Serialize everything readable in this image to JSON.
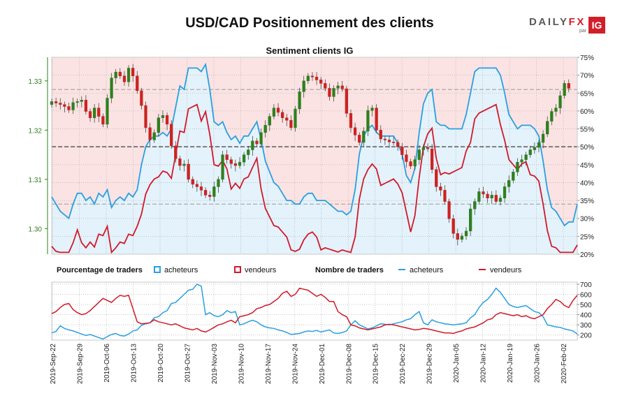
{
  "title": "USD/CAD Positionnement des clients",
  "brand": {
    "name_a": "DAILY",
    "name_b": "FX",
    "sub": "par",
    "badge": "IG"
  },
  "subtitle": "Sentiment clients IG",
  "legend": {
    "pct_title": "Pourcentage de traders",
    "buyers": "acheteurs",
    "sellers": "vendeurs",
    "count_title": "Nombre de traders",
    "buyers2": "acheteurs",
    "sellers2": "vendeurs"
  },
  "colors": {
    "buyers": "#2a9fe0",
    "sellers": "#d01a2a",
    "buyers_fill": "#e4f2fb",
    "sellers_fill": "#fbe3e3",
    "candle_up": "#2f7f1e",
    "candle_down": "#cc2222"
  },
  "chart_data": [
    {
      "type": "candlestick",
      "title": "Sentiment clients IG",
      "x_start": "2019-Sep-22",
      "x_end": "2020-Feb-04",
      "x_tick_labels": [
        "2019-Sep-22",
        "2019-Sep-29",
        "2019-Oct-06",
        "2019-Oct-13",
        "2019-Oct-20",
        "2019-Oct-27",
        "2019-Nov-03",
        "2019-Nov-10",
        "2019-Nov-17",
        "2019-Nov-24",
        "2019-Dec-01",
        "2019-Dec-08",
        "2019-Dec-15",
        "2019-Dec-22",
        "2019-Dec-29",
        "2020-Jan-05",
        "2020-Jan-12",
        "2020-Jan-19",
        "2020-Jan-26",
        "2020-Feb-02"
      ],
      "y_left": {
        "label": "price",
        "ticks": [
          "1.30",
          "1.31",
          "1.32",
          "1.33"
        ],
        "range": [
          1.2948,
          1.3348
        ]
      },
      "y_right": {
        "label": "pourcentage",
        "ticks": [
          "20%",
          "25%",
          "30%",
          "35%",
          "40%",
          "45%",
          "50%",
          "55%",
          "60%",
          "65%",
          "70%",
          "75%"
        ],
        "range": [
          20,
          75
        ]
      },
      "reference_lines_pct": [
        34,
        50,
        66
      ],
      "price_close": [
        1.3258,
        1.3255,
        1.3252,
        1.3248,
        1.3241,
        1.3256,
        1.3258,
        1.3261,
        1.3238,
        1.3225,
        1.3245,
        1.3228,
        1.3212,
        1.3265,
        1.3306,
        1.3318,
        1.331,
        1.3298,
        1.3326,
        1.331,
        1.328,
        1.325,
        1.3205,
        1.318,
        1.3195,
        1.3225,
        1.323,
        1.3212,
        1.3168,
        1.3142,
        1.3128,
        1.3131,
        1.31,
        1.309,
        1.3085,
        1.3078,
        1.3068,
        1.3065,
        1.3085,
        1.31,
        1.315,
        1.314,
        1.3132,
        1.3128,
        1.3135,
        1.315,
        1.316,
        1.3178,
        1.3172,
        1.3195,
        1.321,
        1.3228,
        1.3245,
        1.3236,
        1.3225,
        1.322,
        1.3205,
        1.3243,
        1.3278,
        1.33,
        1.331,
        1.3308,
        1.3302,
        1.3295,
        1.3285,
        1.3268,
        1.3285,
        1.329,
        1.3284,
        1.3234,
        1.3205,
        1.319,
        1.3175,
        1.3198,
        1.324,
        1.3245,
        1.32,
        1.3182,
        1.318,
        1.3176,
        1.3175,
        1.3166,
        1.315,
        1.3136,
        1.3127,
        1.314,
        1.316,
        1.3165,
        1.3162,
        1.312,
        1.3085,
        1.3078,
        1.3055,
        1.302,
        1.299,
        1.2978,
        1.2985,
        1.2995,
        1.304,
        1.3055,
        1.3075,
        1.307,
        1.3062,
        1.3068,
        1.3055,
        1.3062,
        1.3085,
        1.3098,
        1.3115,
        1.3135,
        1.314,
        1.315,
        1.316,
        1.3165,
        1.3175,
        1.3192,
        1.3218,
        1.3238,
        1.3245,
        1.327,
        1.3295,
        1.3285
      ],
      "percent_acheteurs": [
        36,
        34,
        32,
        31,
        30,
        34,
        37,
        37,
        35,
        36,
        34,
        37,
        36,
        38,
        33,
        35,
        36,
        35,
        37,
        36,
        38,
        45,
        50,
        52,
        53,
        53,
        54,
        53,
        55,
        61,
        67,
        66,
        72,
        72,
        72,
        71,
        73,
        66,
        57,
        56,
        57,
        54,
        52,
        53,
        51,
        53,
        53,
        55,
        57,
        52,
        46,
        43,
        40,
        39,
        37,
        35,
        35,
        34,
        34,
        36,
        37,
        37,
        35,
        35,
        35,
        34,
        33,
        32,
        32,
        31,
        32,
        38,
        48,
        53,
        55,
        56,
        54,
        53,
        53,
        53,
        53,
        51,
        48,
        42,
        40,
        44,
        54,
        62,
        65,
        66,
        57,
        56,
        56,
        55,
        55,
        55,
        55,
        59,
        65,
        71,
        72,
        72,
        72,
        72,
        72,
        70,
        65,
        59,
        57,
        55,
        56,
        56,
        56,
        55,
        53,
        46,
        38,
        33,
        32,
        30,
        28,
        29,
        29,
        34
      ],
      "percent_vendeurs": [
        64,
        66,
        68,
        69,
        70,
        66,
        63,
        63,
        65,
        64,
        66,
        63,
        64,
        62,
        67,
        65,
        64,
        65,
        63,
        64,
        62,
        55,
        50,
        48,
        47,
        47,
        46,
        47,
        45,
        39,
        33,
        34,
        28,
        28,
        28,
        29,
        27,
        34,
        43,
        44,
        43,
        46,
        48,
        47,
        49,
        47,
        47,
        45,
        43,
        48,
        54,
        57,
        60,
        61,
        63,
        65,
        65,
        66,
        66,
        64,
        63,
        63,
        65,
        65,
        65,
        66,
        67,
        68,
        68,
        69,
        68,
        62,
        52,
        47,
        45,
        44,
        46,
        47,
        47,
        47,
        47,
        49,
        52,
        58,
        60,
        56,
        46,
        38,
        35,
        34,
        43,
        44,
        44,
        45,
        45,
        45,
        45,
        41,
        35,
        29,
        28,
        28,
        28,
        28,
        28,
        30,
        35,
        41,
        43,
        45,
        44,
        44,
        44,
        45,
        47,
        54,
        62,
        67,
        68,
        70,
        72,
        71,
        71,
        66
      ]
    },
    {
      "type": "line",
      "title": "Nombre de traders",
      "y_ticks": [
        "200",
        "300",
        "400",
        "500",
        "600",
        "700"
      ],
      "y_range": [
        150,
        720
      ],
      "series": [
        {
          "name": "acheteurs",
          "values": [
            220,
            235,
            290,
            265,
            250,
            240,
            225,
            210,
            195,
            205,
            190,
            175,
            160,
            185,
            205,
            215,
            195,
            190,
            210,
            240,
            250,
            295,
            310,
            320,
            370,
            380,
            420,
            440,
            510,
            520,
            560,
            600,
            640,
            650,
            700,
            680,
            400,
            420,
            390,
            380,
            400,
            440,
            420,
            430,
            300,
            310,
            330,
            345,
            330,
            300,
            280,
            270,
            265,
            250,
            240,
            225,
            205,
            210,
            215,
            230,
            240,
            235,
            245,
            230,
            240,
            250,
            220,
            215,
            225,
            240,
            300,
            340,
            300,
            280,
            260,
            270,
            290,
            310,
            305,
            300,
            310,
            320,
            330,
            350,
            360,
            400,
            430,
            320,
            300,
            350,
            330,
            320,
            310,
            305,
            300,
            305,
            310,
            320,
            370,
            400,
            470,
            520,
            550,
            600,
            660,
            620,
            560,
            500,
            480,
            470,
            480,
            490,
            460,
            430,
            420,
            380,
            300,
            290,
            280,
            275,
            260,
            250,
            240,
            210
          ]
        },
        {
          "name": "vendeurs",
          "values": [
            410,
            430,
            470,
            500,
            510,
            450,
            420,
            400,
            410,
            440,
            480,
            520,
            560,
            540,
            520,
            560,
            590,
            580,
            590,
            460,
            330,
            310,
            315,
            320,
            350,
            330,
            320,
            310,
            300,
            310,
            290,
            270,
            260,
            250,
            265,
            240,
            230,
            250,
            275,
            300,
            310,
            330,
            345,
            320,
            380,
            390,
            400,
            420,
            460,
            470,
            490,
            500,
            530,
            560,
            610,
            630,
            580,
            600,
            660,
            650,
            640,
            610,
            580,
            600,
            570,
            530,
            530,
            430,
            400,
            380,
            300,
            290,
            270,
            260,
            250,
            260,
            270,
            280,
            300,
            305,
            300,
            290,
            280,
            270,
            260,
            250,
            255,
            265,
            260,
            250,
            240,
            230,
            220,
            220,
            215,
            230,
            240,
            260,
            270,
            280,
            300,
            320,
            350,
            360,
            400,
            420,
            410,
            400,
            390,
            400,
            380,
            390,
            370,
            360,
            380,
            400,
            460,
            500,
            550,
            530,
            490,
            470,
            540,
            590
          ]
        }
      ]
    }
  ]
}
